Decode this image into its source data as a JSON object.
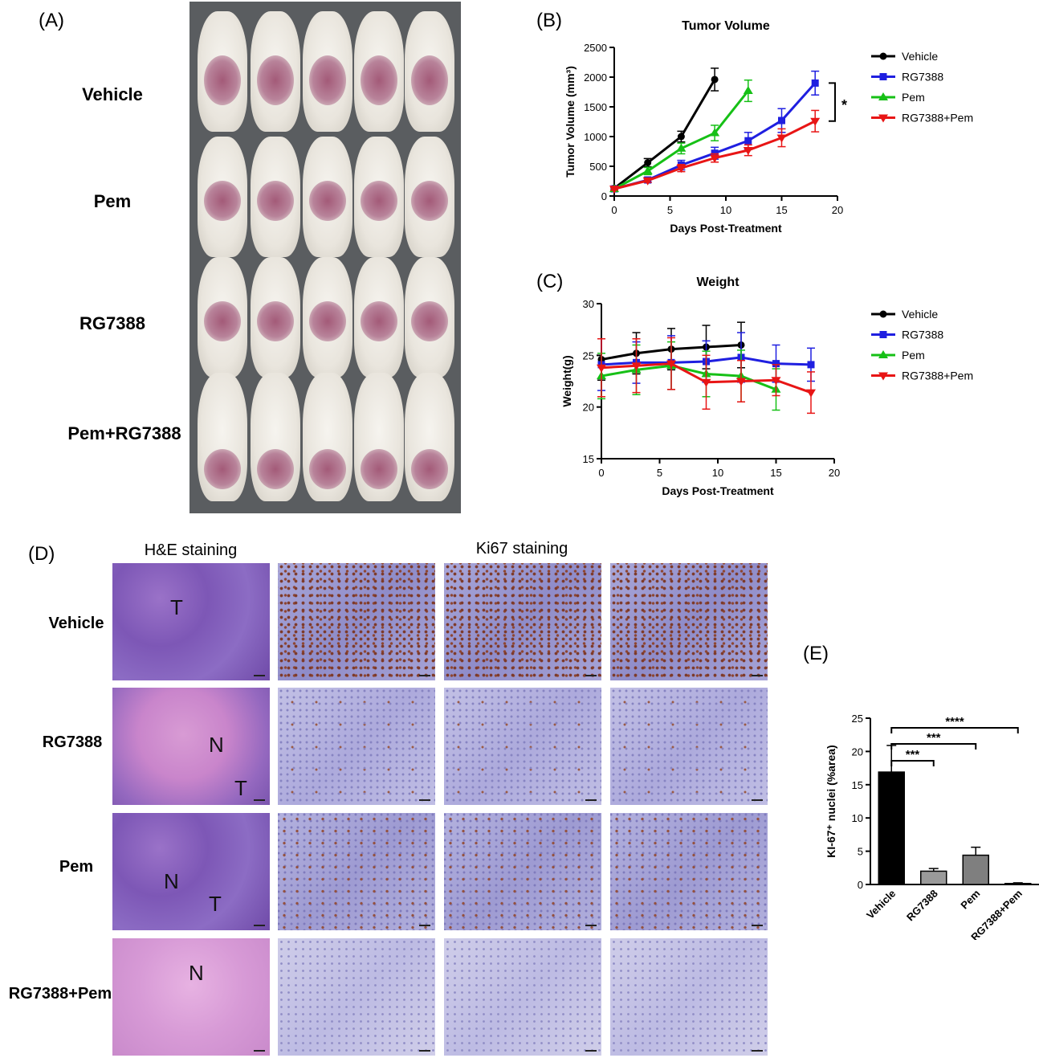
{
  "panel_a": {
    "letter": "(A)",
    "groups": [
      "Vehicle",
      "Pem",
      "RG7388",
      "Pem+RG7388"
    ]
  },
  "panel_b": {
    "letter": "(B)",
    "significance": "*"
  },
  "panel_c": {
    "letter": "(C)"
  },
  "panel_d": {
    "letter": "(D)",
    "he_title": "H&E staining",
    "ki_title": "Ki67 staining",
    "rows": [
      "Vehicle",
      "RG7388",
      "Pem",
      "RG7388+Pem"
    ],
    "tile_letters": {
      "vehicle": [
        "T"
      ],
      "rg7388": [
        "N",
        "T"
      ],
      "pem": [
        "N",
        "T"
      ],
      "combo": [
        "N"
      ]
    }
  },
  "panel_e": {
    "letter": "(E)"
  },
  "chart_data": [
    {
      "type": "line",
      "title": "Tumor Volume",
      "xlabel": "Days Post-Treatment",
      "ylabel": "Tumor Volume (mm³)",
      "xlim": [
        0,
        20
      ],
      "ylim": [
        0,
        2500
      ],
      "xticks": [
        0,
        5,
        10,
        15,
        20
      ],
      "yticks": [
        0,
        500,
        1000,
        1500,
        2000,
        2500
      ],
      "legend_position": "right",
      "series": [
        {
          "name": "Vehicle",
          "color": "#000000",
          "marker": "circle",
          "x": [
            0,
            3,
            6,
            9
          ],
          "y": [
            130,
            560,
            1000,
            1960
          ],
          "err": [
            30,
            70,
            90,
            190
          ]
        },
        {
          "name": "RG7388",
          "color": "#1f1fe0",
          "marker": "square",
          "x": [
            0,
            3,
            6,
            9,
            12,
            15,
            18
          ],
          "y": [
            120,
            270,
            520,
            720,
            930,
            1270,
            1900
          ],
          "err": [
            20,
            40,
            80,
            100,
            140,
            200,
            200
          ]
        },
        {
          "name": "Pem",
          "color": "#16c016",
          "marker": "triangle-up",
          "x": [
            0,
            3,
            6,
            9,
            12
          ],
          "y": [
            120,
            420,
            800,
            1060,
            1770
          ],
          "err": [
            20,
            60,
            90,
            130,
            180
          ]
        },
        {
          "name": "RG7388+Pem",
          "color": "#e81515",
          "marker": "triangle-down",
          "x": [
            0,
            3,
            6,
            9,
            12,
            15,
            18
          ],
          "y": [
            120,
            260,
            470,
            640,
            770,
            980,
            1260
          ],
          "err": [
            20,
            30,
            60,
            70,
            90,
            150,
            180
          ]
        }
      ]
    },
    {
      "type": "line",
      "title": "Weight",
      "xlabel": "Days Post-Treatment",
      "ylabel": "Weight(g)",
      "xlim": [
        0,
        20
      ],
      "ylim": [
        15,
        30
      ],
      "xticks": [
        0,
        5,
        10,
        15,
        20
      ],
      "yticks": [
        15,
        20,
        25,
        30
      ],
      "legend_position": "right",
      "series": [
        {
          "name": "Vehicle",
          "color": "#000000",
          "marker": "circle",
          "x": [
            0,
            3,
            6,
            9,
            12
          ],
          "y": [
            24.6,
            25.2,
            25.6,
            25.8,
            26.0
          ],
          "err": [
            2.0,
            2.0,
            2.0,
            2.1,
            2.2
          ]
        },
        {
          "name": "RG7388",
          "color": "#1f1fe0",
          "marker": "square",
          "x": [
            0,
            3,
            6,
            9,
            12,
            15,
            18
          ],
          "y": [
            24.1,
            24.3,
            24.3,
            24.4,
            24.8,
            24.2,
            24.1
          ],
          "err": [
            2.5,
            2.0,
            2.6,
            2.0,
            2.4,
            1.8,
            1.6
          ]
        },
        {
          "name": "Pem",
          "color": "#16c016",
          "marker": "triangle-up",
          "x": [
            0,
            3,
            6,
            9,
            12,
            15
          ],
          "y": [
            23.0,
            23.6,
            24.0,
            23.2,
            23.0,
            21.7
          ],
          "err": [
            2.2,
            2.4,
            2.3,
            2.2,
            2.5,
            2.0
          ]
        },
        {
          "name": "RG7388+Pem",
          "color": "#e81515",
          "marker": "triangle-down",
          "x": [
            0,
            3,
            6,
            9,
            12,
            15,
            18
          ],
          "y": [
            23.8,
            24.0,
            24.2,
            22.4,
            22.5,
            22.6,
            21.4
          ],
          "err": [
            2.8,
            2.6,
            2.5,
            2.6,
            2.0,
            1.5,
            2.0
          ]
        }
      ]
    },
    {
      "type": "bar",
      "title": "",
      "xlabel": "",
      "ylabel": "KI-67⁺ nuclei (%area)",
      "ylim": [
        0,
        25
      ],
      "yticks": [
        0,
        5,
        10,
        15,
        20,
        25
      ],
      "categories": [
        "Vehicle",
        "RG7388",
        "Pem",
        "RG7388+Pem"
      ],
      "values": [
        16.9,
        2.0,
        4.4,
        0.15
      ],
      "err": [
        4.0,
        0.4,
        1.2,
        0.1
      ],
      "colors": [
        "#000000",
        "#9a9a9a",
        "#7f7f7f",
        "#ffffff"
      ],
      "significance": [
        {
          "from": "Vehicle",
          "to": "RG7388",
          "label": "***"
        },
        {
          "from": "Vehicle",
          "to": "Pem",
          "label": "***"
        },
        {
          "from": "Vehicle",
          "to": "RG7388+Pem",
          "label": "****"
        }
      ]
    }
  ]
}
